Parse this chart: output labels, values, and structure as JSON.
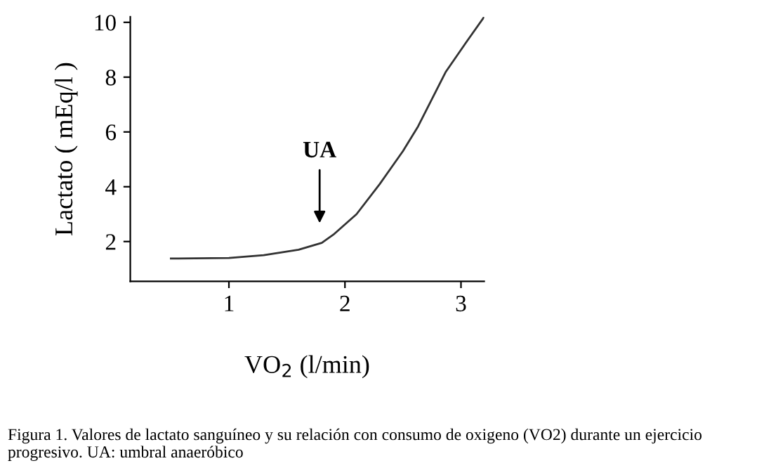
{
  "chart_data": {
    "type": "line",
    "xlabel": "VO$_{2}$ (l/min)",
    "ylabel": "Lactato ( mEq/l )",
    "x": [
      0.5,
      1.0,
      1.3,
      1.6,
      1.8,
      1.9,
      2.1,
      2.3,
      2.5,
      2.63,
      2.87,
      3.05,
      3.2
    ],
    "series": [
      {
        "color": "#333333",
        "values": [
          1.38,
          1.4,
          1.5,
          1.7,
          1.95,
          2.25,
          3.0,
          4.1,
          5.3,
          6.2,
          8.2,
          9.3,
          10.2
        ]
      }
    ],
    "xlim": [
      0.15,
      3.2
    ],
    "ylim": [
      0.55,
      10.2
    ],
    "xticks": [
      1,
      2,
      3
    ],
    "yticks": [
      2,
      4,
      6,
      8,
      10
    ],
    "grid": false,
    "legend": false,
    "marker": "none",
    "line_style": "solid",
    "annotations": [
      "UA",
      "Figura 1. Valores de lactato sanguíneo y su relación con consumo de oxigeno (VO2) durante un ejercicio progresivo. UA: umbral anaeróbico"
    ]
  }
}
